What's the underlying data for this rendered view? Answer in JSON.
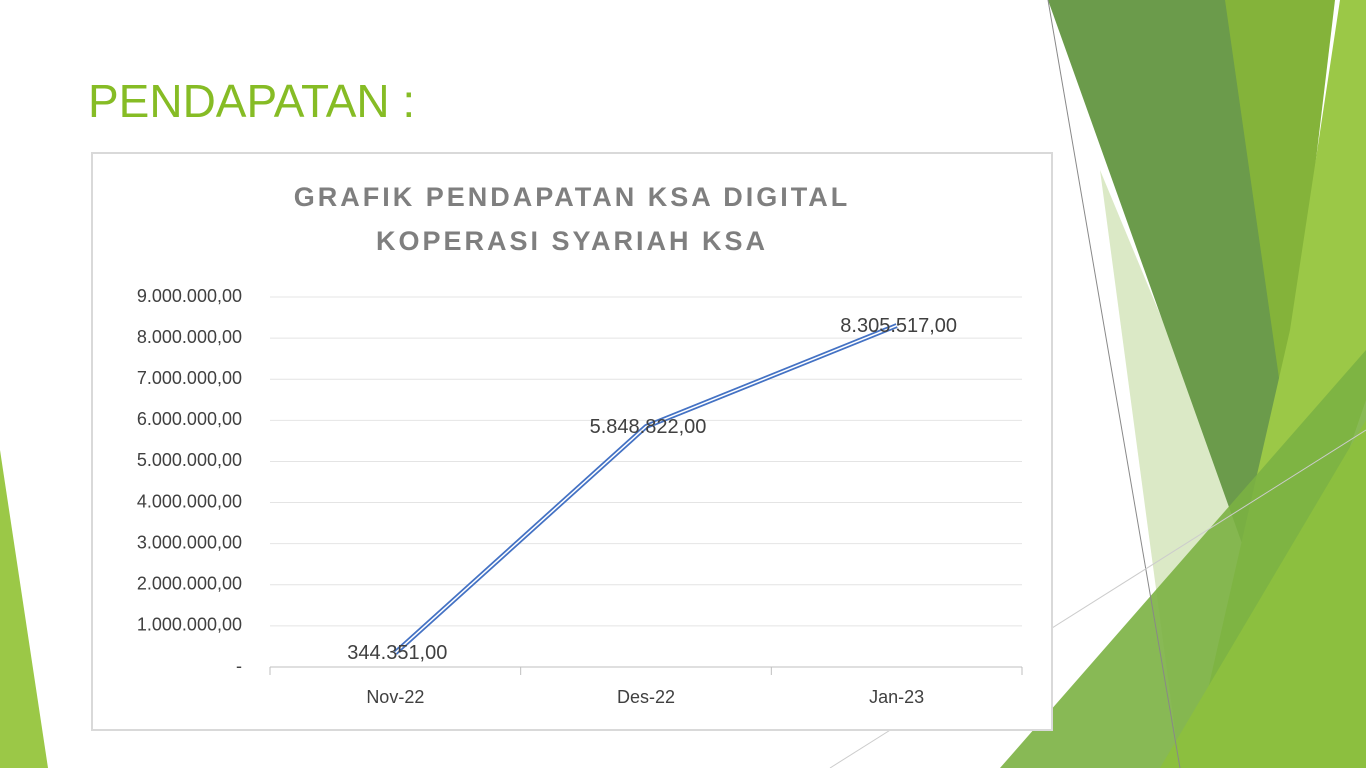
{
  "title": "PENDAPATAN :",
  "chart_data": {
    "type": "line",
    "title": [
      "GRAFIK PENDAPATAN KSA DIGITAL",
      "KOPERASI SYARIAH KSA"
    ],
    "categories": [
      "Nov-22",
      "Des-22",
      "Jan-23"
    ],
    "series": [
      {
        "color": "#4472c4",
        "values": [
          344351,
          5848822,
          8305517
        ],
        "value_labels": [
          "344.351,00",
          "5.848.822,00",
          "8.305.517,00"
        ]
      }
    ],
    "ylim": [
      0,
      9000000
    ],
    "yticks": [
      {
        "value": 0,
        "label": "-"
      },
      {
        "value": 1000000,
        "label": "1.000.000,00"
      },
      {
        "value": 2000000,
        "label": "2.000.000,00"
      },
      {
        "value": 3000000,
        "label": "3.000.000,00"
      },
      {
        "value": 4000000,
        "label": "4.000.000,00"
      },
      {
        "value": 5000000,
        "label": "5.000.000,00"
      },
      {
        "value": 6000000,
        "label": "6.000.000,00"
      },
      {
        "value": 7000000,
        "label": "7.000.000,00"
      },
      {
        "value": 8000000,
        "label": "8.000.000,00"
      },
      {
        "value": 9000000,
        "label": "9.000.000,00"
      }
    ],
    "grid": true
  }
}
